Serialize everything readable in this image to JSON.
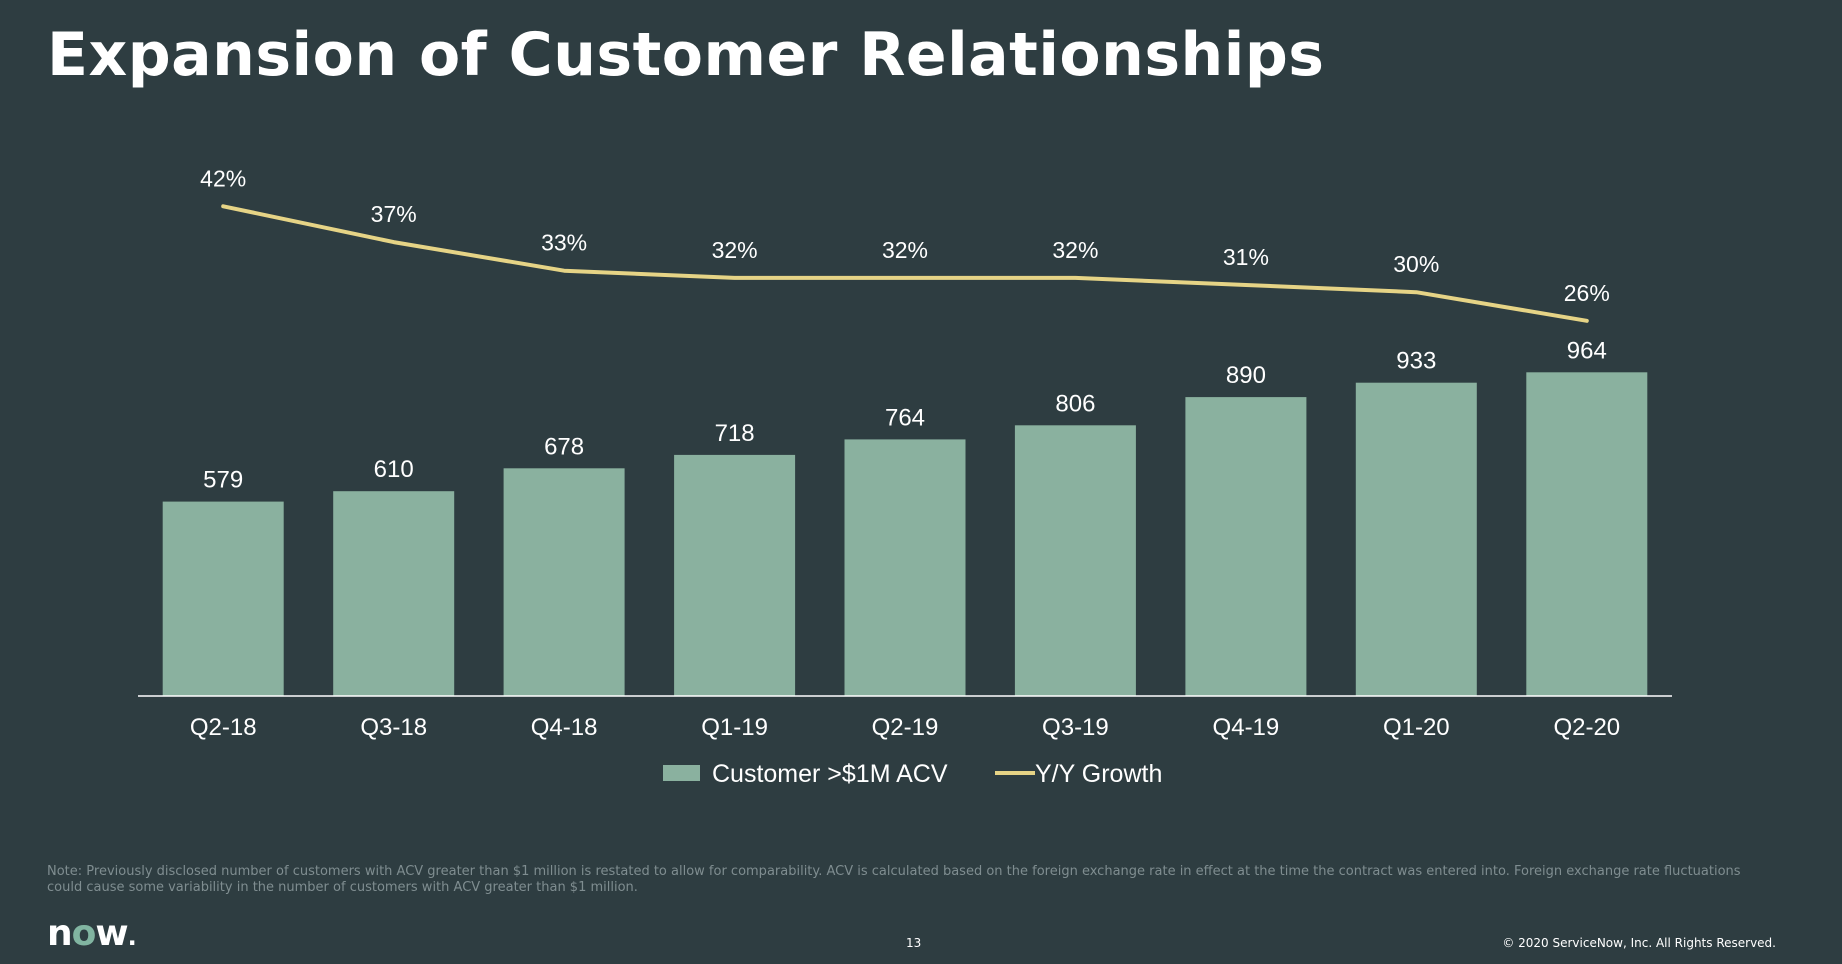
{
  "slide": {
    "title": "Expansion of Customer Relationships",
    "note": "Note: Previously disclosed number of customers with ACV greater than $1 million is restated to allow for comparability. ACV is calculated based on the foreign exchange rate in effect at the time the contract was entered into. Foreign exchange rate fluctuations could cause some variability in the number of customers with ACV greater than $1 million.",
    "logo": {
      "n": "n",
      "o": "o",
      "w": "w",
      "dot": "."
    },
    "page_number": "13",
    "copyright": "© 2020 ServiceNow, Inc. All Rights Reserved."
  },
  "chart_data": {
    "type": "bar",
    "categories": [
      "Q2-18",
      "Q3-18",
      "Q4-18",
      "Q1-19",
      "Q2-19",
      "Q3-19",
      "Q4-19",
      "Q1-20",
      "Q2-20"
    ],
    "series": [
      {
        "name": "Customer >$1M ACV",
        "type": "bar",
        "values": [
          579,
          610,
          678,
          718,
          764,
          806,
          890,
          933,
          964
        ],
        "labels": [
          "579",
          "610",
          "678",
          "718",
          "764",
          "806",
          "890",
          "933",
          "964"
        ],
        "color": "#8ab19f"
      },
      {
        "name": "Y/Y Growth",
        "type": "line",
        "values": [
          42,
          37,
          33,
          32,
          32,
          32,
          31,
          30,
          26
        ],
        "labels": [
          "42%",
          "37%",
          "33%",
          "32%",
          "32%",
          "32%",
          "31%",
          "30%",
          "26%"
        ],
        "color": "#e6d486"
      }
    ],
    "legend_position": "bottom",
    "grid": false,
    "title": "",
    "xlabel": "",
    "ylabel": ""
  },
  "colors": {
    "background": "#2e3d41",
    "bar": "#8ab19f",
    "line": "#e6d486",
    "axis": "#ffffff",
    "logo_accent": "#81b5a1"
  }
}
